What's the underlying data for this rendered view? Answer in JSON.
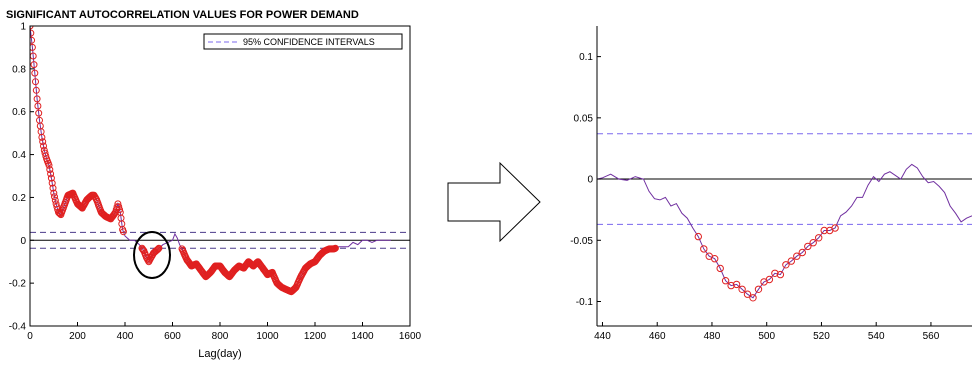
{
  "chart_data": [
    {
      "type": "line",
      "title": "SIGNIFICANT AUTOCORRELATION VALUES FOR POWER DEMAND",
      "xlabel": "Lag(day)",
      "ylabel": "",
      "xlim": [
        0,
        1600
      ],
      "ylim": [
        -0.4,
        1
      ],
      "xticks": [
        "0",
        "200",
        "400",
        "600",
        "800",
        "1000",
        "1200",
        "1400",
        "1600"
      ],
      "yticks": [
        "-0.4",
        "-0.2",
        "0",
        "0.2",
        "0.4",
        "0.6",
        "0.8",
        "1"
      ],
      "grid": false,
      "legend": {
        "position": "top-right",
        "entries": [
          "95% CONFIDENCE INTERVALS"
        ]
      },
      "confidence_bounds": [
        0.037,
        -0.037
      ],
      "annotation": "circle around lag ~500 (zoom region)",
      "series": [
        {
          "style": "line",
          "color": "#7030a0",
          "x": [
            0,
            10,
            20,
            30,
            40,
            50,
            60,
            70,
            80,
            90,
            100,
            110,
            120,
            130,
            140,
            160,
            180,
            200,
            220,
            240,
            260,
            270,
            280,
            300,
            320,
            340,
            360,
            370,
            380,
            390,
            400,
            420,
            440,
            460,
            480,
            490,
            500,
            510,
            520,
            530,
            540,
            560,
            580,
            600,
            610,
            620,
            630,
            640,
            660,
            680,
            700,
            720,
            740,
            760,
            780,
            800,
            820,
            840,
            860,
            880,
            900,
            920,
            940,
            960,
            980,
            1000,
            1020,
            1040,
            1060,
            1080,
            1100,
            1120,
            1140,
            1160,
            1180,
            1200,
            1220,
            1240,
            1260,
            1280,
            1300,
            1320,
            1340,
            1360,
            1380,
            1400,
            1420,
            1440,
            1460,
            1480,
            1500,
            1520
          ],
          "y": [
            1.0,
            0.9,
            0.78,
            0.66,
            0.56,
            0.48,
            0.42,
            0.38,
            0.35,
            0.29,
            0.22,
            0.17,
            0.13,
            0.12,
            0.15,
            0.21,
            0.22,
            0.17,
            0.15,
            0.19,
            0.21,
            0.21,
            0.19,
            0.13,
            0.11,
            0.1,
            0.13,
            0.17,
            0.13,
            0.05,
            0.02,
            0.0,
            0.0,
            -0.02,
            -0.05,
            -0.08,
            -0.1,
            -0.08,
            -0.06,
            -0.05,
            -0.04,
            -0.02,
            -0.01,
            0.0,
            0.03,
            0.01,
            -0.02,
            -0.04,
            -0.09,
            -0.12,
            -0.11,
            -0.14,
            -0.17,
            -0.15,
            -0.12,
            -0.12,
            -0.15,
            -0.17,
            -0.14,
            -0.12,
            -0.13,
            -0.1,
            -0.12,
            -0.1,
            -0.13,
            -0.16,
            -0.15,
            -0.2,
            -0.22,
            -0.23,
            -0.24,
            -0.22,
            -0.17,
            -0.13,
            -0.11,
            -0.1,
            -0.07,
            -0.05,
            -0.04,
            -0.04,
            -0.03,
            -0.03,
            -0.03,
            -0.01,
            -0.02,
            0.0,
            0.0,
            -0.01,
            0.0,
            0.0,
            0.0,
            0.0
          ]
        }
      ]
    },
    {
      "type": "line",
      "title": "",
      "xlabel": "",
      "ylabel": "",
      "xlim": [
        438,
        575
      ],
      "ylim": [
        -0.12,
        0.125
      ],
      "xticks": [
        "440",
        "460",
        "480",
        "500",
        "520",
        "540",
        "560"
      ],
      "yticks": [
        "-0.1",
        "-0.05",
        "0",
        "0.05",
        "0.1"
      ],
      "grid": false,
      "confidence_bounds": [
        0.037,
        -0.037
      ],
      "series": [
        {
          "style": "line",
          "color": "#7030a0",
          "x": [
            438,
            440,
            443,
            446,
            449,
            452,
            455,
            457,
            459,
            461,
            463,
            465,
            467,
            469,
            471,
            473,
            475,
            477,
            479,
            481,
            483,
            485,
            487,
            489,
            491,
            493,
            495,
            497,
            499,
            501,
            503,
            505,
            507,
            509,
            511,
            513,
            515,
            517,
            519,
            521,
            523,
            525,
            527,
            529,
            531,
            533,
            535,
            537,
            539,
            541,
            543,
            545,
            547,
            549,
            551,
            553,
            555,
            557,
            559,
            561,
            563,
            565,
            567,
            569,
            571,
            573,
            575
          ],
          "y": [
            0.0,
            0.001,
            0.004,
            0.0,
            -0.001,
            0.002,
            0.0,
            -0.01,
            -0.016,
            -0.017,
            -0.015,
            -0.022,
            -0.02,
            -0.028,
            -0.032,
            -0.04,
            -0.047,
            -0.057,
            -0.063,
            -0.065,
            -0.073,
            -0.083,
            -0.087,
            -0.086,
            -0.09,
            -0.094,
            -0.097,
            -0.09,
            -0.084,
            -0.082,
            -0.077,
            -0.078,
            -0.07,
            -0.067,
            -0.063,
            -0.06,
            -0.055,
            -0.052,
            -0.048,
            -0.042,
            -0.042,
            -0.04,
            -0.03,
            -0.027,
            -0.022,
            -0.015,
            -0.015,
            -0.005,
            0.002,
            -0.002,
            0.004,
            0.006,
            0.003,
            0.0,
            0.008,
            0.012,
            0.009,
            0.002,
            -0.003,
            -0.002,
            -0.006,
            -0.011,
            -0.022,
            -0.028,
            -0.035,
            -0.032,
            -0.03
          ]
        },
        {
          "style": "markers",
          "color": "#e02020",
          "x": [
            475,
            477,
            479,
            481,
            483,
            485,
            487,
            489,
            491,
            493,
            495,
            497,
            499,
            501,
            503,
            505,
            507,
            509,
            511,
            513,
            515,
            517,
            519,
            521,
            523,
            525
          ],
          "y": [
            -0.047,
            -0.057,
            -0.063,
            -0.065,
            -0.073,
            -0.083,
            -0.087,
            -0.086,
            -0.09,
            -0.094,
            -0.097,
            -0.09,
            -0.084,
            -0.082,
            -0.077,
            -0.078,
            -0.07,
            -0.067,
            -0.063,
            -0.06,
            -0.055,
            -0.052,
            -0.048,
            -0.042,
            -0.042,
            -0.04
          ]
        }
      ]
    }
  ]
}
